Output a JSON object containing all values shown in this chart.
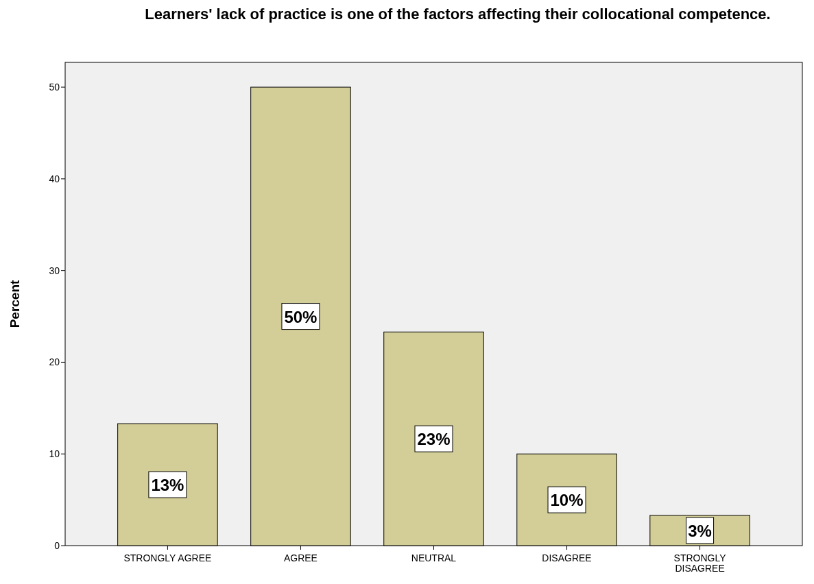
{
  "chart_data": {
    "type": "bar",
    "title": "Learners' lack of practice is one of the factors affecting their collocational competence.",
    "ylabel": "Percent",
    "categories": [
      "STRONGLY AGREE",
      "AGREE",
      "NEUTRAL",
      "DISAGREE",
      "STRONGLY DISAGREE"
    ],
    "values": [
      13.3,
      50,
      23.3,
      10,
      3.3
    ],
    "value_labels": [
      "13%",
      "50%",
      "23%",
      "10%",
      "3%"
    ],
    "color": "#d3ce97",
    "ylim": [
      0,
      52.7
    ],
    "yticks": [
      0,
      10,
      20,
      30,
      40,
      50
    ],
    "grid": false
  }
}
